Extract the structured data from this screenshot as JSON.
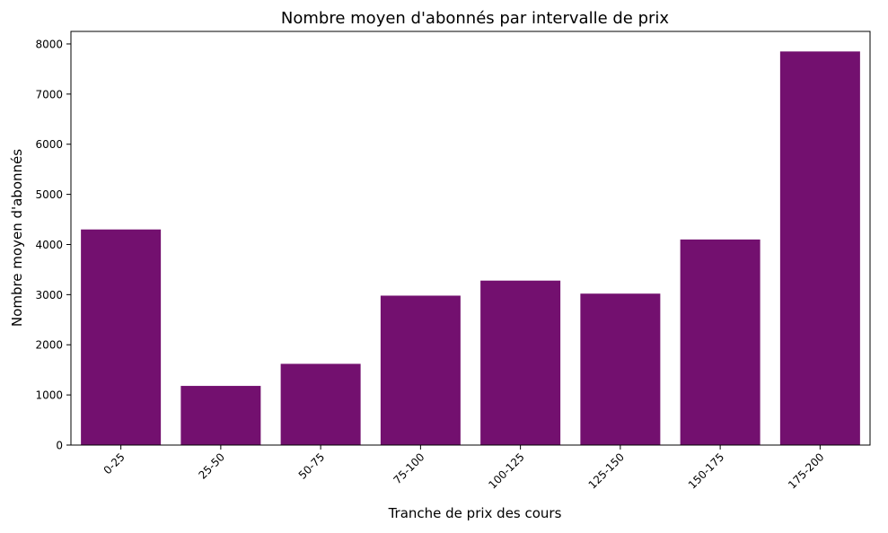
{
  "chart_data": {
    "type": "bar",
    "title": "Nombre moyen d'abonnés par intervalle de prix",
    "xlabel": "Tranche de prix des cours",
    "ylabel": "Nombre moyen d'abonnés",
    "categories": [
      "0-25",
      "25-50",
      "50-75",
      "75-100",
      "100-125",
      "125-150",
      "150-175",
      "175-200"
    ],
    "values": [
      4300,
      1180,
      1620,
      2980,
      3280,
      3020,
      4100,
      7850
    ],
    "ylim": [
      0,
      8250
    ],
    "yticks": [
      0,
      1000,
      2000,
      3000,
      4000,
      5000,
      6000,
      7000,
      8000
    ],
    "bar_color": "#73106f",
    "grid": false,
    "x_tick_rotation": "45 degrees"
  }
}
